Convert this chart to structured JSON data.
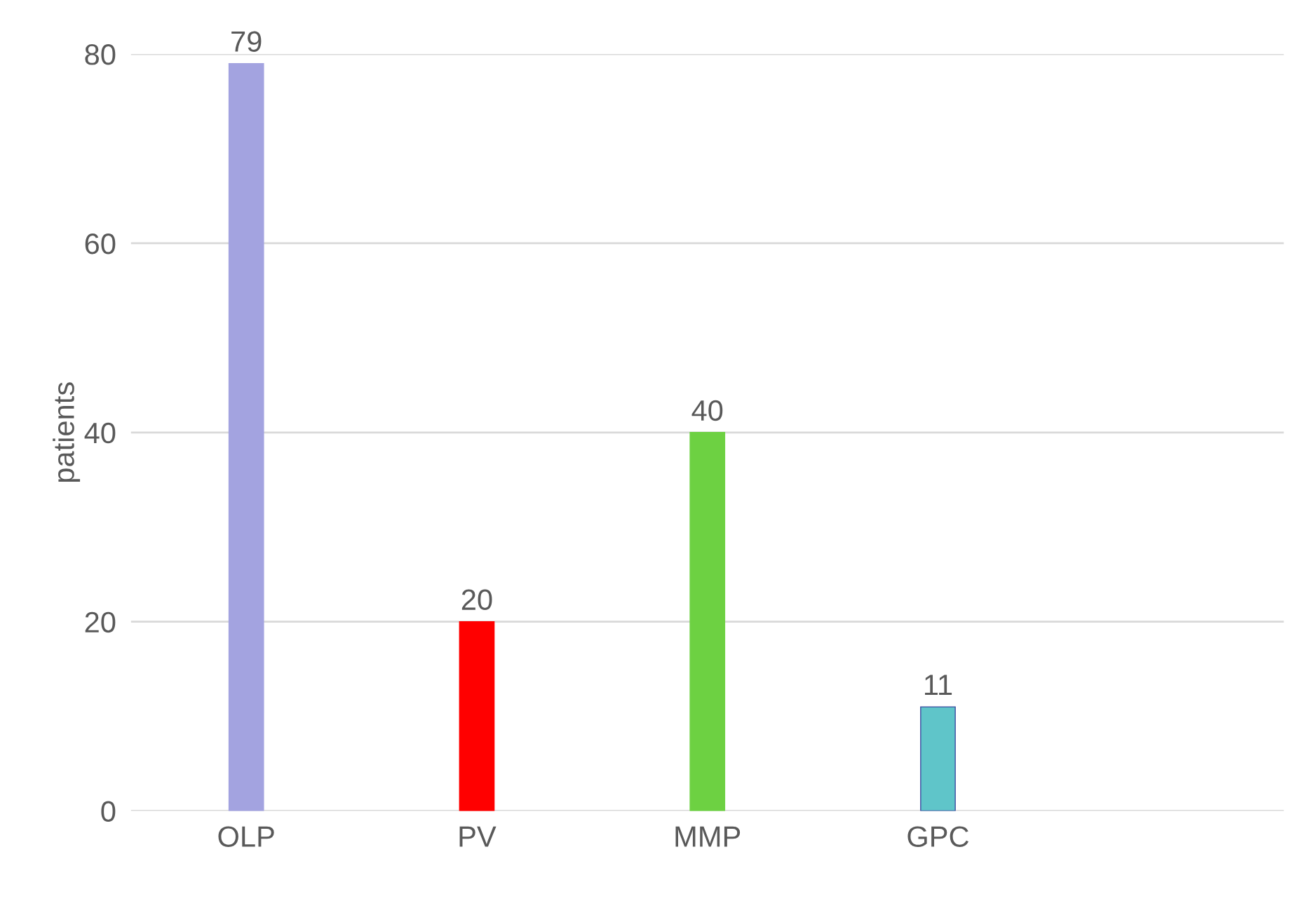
{
  "chart_data": {
    "type": "bar",
    "ylabel": "patients",
    "categories": [
      "OLP",
      "PV",
      "MMP",
      "GPC"
    ],
    "values": [
      79,
      20,
      40,
      11
    ],
    "colors": [
      "#a3a3e0",
      "#ff0000",
      "#6dd142",
      "#5fc5c9"
    ],
    "ylim": [
      0,
      80
    ],
    "yticks": [
      0,
      20,
      40,
      60,
      80
    ],
    "grid": "y",
    "data_labels": true,
    "legend": false
  }
}
